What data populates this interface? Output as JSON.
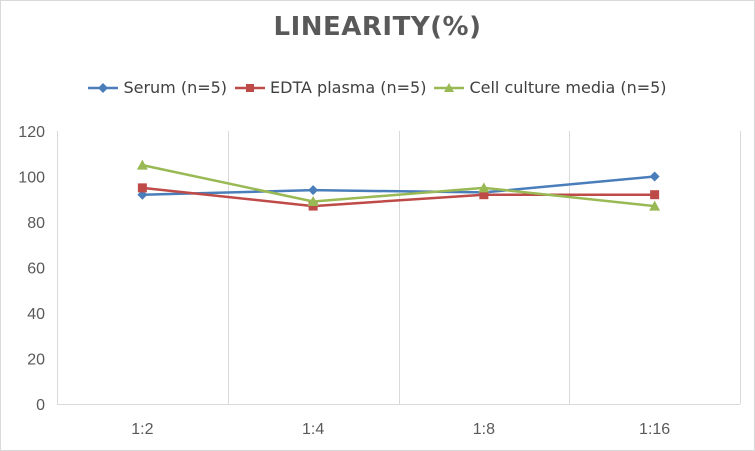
{
  "chart_data": {
    "type": "line",
    "title": "LINEARITY(%)",
    "xlabel": "",
    "ylabel": "",
    "categories": [
      "1:2",
      "1:4",
      "1:8",
      "1:16"
    ],
    "ylim": [
      0,
      120
    ],
    "yticks": [
      "0",
      "20",
      "40",
      "60",
      "80",
      "100",
      "120"
    ],
    "grid": "vertical",
    "legend_position": "top",
    "series": [
      {
        "name": "Serum (n=5)",
        "values": [
          92,
          94,
          93,
          100
        ],
        "color": "#4a7ebb",
        "marker": "diamond"
      },
      {
        "name": "EDTA plasma (n=5)",
        "values": [
          95,
          87,
          92,
          92
        ],
        "color": "#be4b48",
        "marker": "square"
      },
      {
        "name": "Cell culture media (n=5)",
        "values": [
          105,
          89,
          95,
          87
        ],
        "color": "#98b954",
        "marker": "triangle"
      }
    ]
  }
}
